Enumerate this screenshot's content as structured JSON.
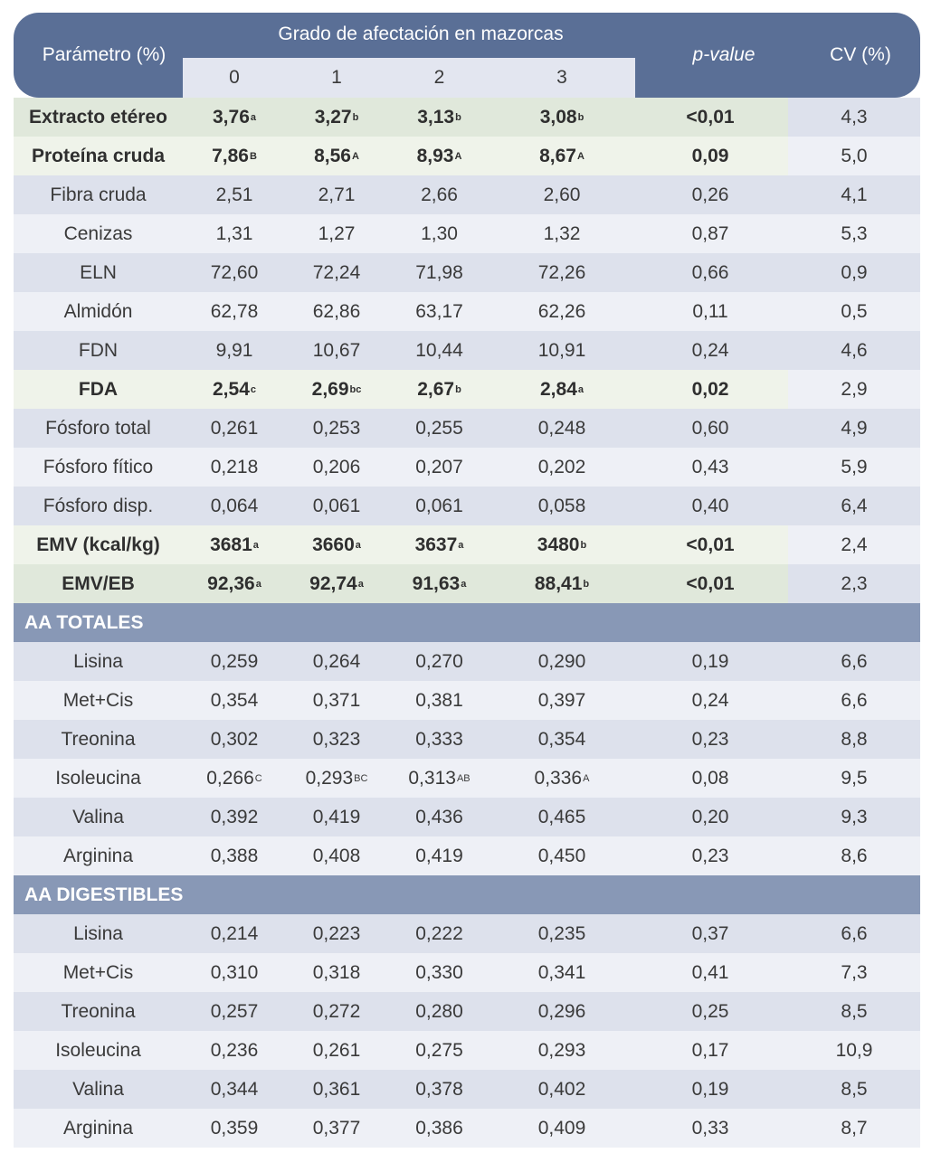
{
  "header": {
    "param_label": "Parámetro (%)",
    "group_label": "Grado de afectación en mazorcas",
    "levels": [
      "0",
      "1",
      "2",
      "3"
    ],
    "pvalue_label": "p-value",
    "cv_label": "CV (%)"
  },
  "rows": [
    {
      "type": "data",
      "style": "green",
      "bold": true,
      "param": "Extracto etéreo",
      "vals": [
        {
          "v": "3,76",
          "s": "a"
        },
        {
          "v": "3,27",
          "s": "b"
        },
        {
          "v": "3,13",
          "s": "b"
        },
        {
          "v": "3,08",
          "s": "b"
        }
      ],
      "p": "<0,01",
      "cv": "4,3"
    },
    {
      "type": "data",
      "style": "green",
      "bold": true,
      "param": "Proteína cruda",
      "vals": [
        {
          "v": "7,86",
          "s": "B"
        },
        {
          "v": "8,56",
          "s": "A"
        },
        {
          "v": "8,93",
          "s": "A"
        },
        {
          "v": "8,67",
          "s": "A"
        }
      ],
      "p": "0,09",
      "cv": "5,0"
    },
    {
      "type": "data",
      "param": "Fibra cruda",
      "vals": [
        {
          "v": "2,51"
        },
        {
          "v": "2,71"
        },
        {
          "v": "2,66"
        },
        {
          "v": "2,60"
        }
      ],
      "p": "0,26",
      "cv": "4,1"
    },
    {
      "type": "data",
      "param": "Cenizas",
      "vals": [
        {
          "v": "1,31"
        },
        {
          "v": "1,27"
        },
        {
          "v": "1,30"
        },
        {
          "v": "1,32"
        }
      ],
      "p": "0,87",
      "cv": "5,3"
    },
    {
      "type": "data",
      "param": "ELN",
      "vals": [
        {
          "v": "72,60"
        },
        {
          "v": "72,24"
        },
        {
          "v": "71,98"
        },
        {
          "v": "72,26"
        }
      ],
      "p": "0,66",
      "cv": "0,9"
    },
    {
      "type": "data",
      "param": "Almidón",
      "vals": [
        {
          "v": "62,78"
        },
        {
          "v": "62,86"
        },
        {
          "v": "63,17"
        },
        {
          "v": "62,26"
        }
      ],
      "p": "0,11",
      "cv": "0,5"
    },
    {
      "type": "data",
      "param": "FDN",
      "vals": [
        {
          "v": "9,91"
        },
        {
          "v": "10,67"
        },
        {
          "v": "10,44"
        },
        {
          "v": "10,91"
        }
      ],
      "p": "0,24",
      "cv": "4,6"
    },
    {
      "type": "data",
      "style": "green",
      "bold": true,
      "param": "FDA",
      "vals": [
        {
          "v": "2,54",
          "s": "c"
        },
        {
          "v": "2,69",
          "s": "bc"
        },
        {
          "v": "2,67",
          "s": "b"
        },
        {
          "v": "2,84",
          "s": "a"
        }
      ],
      "p": "0,02",
      "cv": "2,9"
    },
    {
      "type": "data",
      "param": "Fósforo total",
      "vals": [
        {
          "v": "0,261"
        },
        {
          "v": "0,253"
        },
        {
          "v": "0,255"
        },
        {
          "v": "0,248"
        }
      ],
      "p": "0,60",
      "cv": "4,9"
    },
    {
      "type": "data",
      "param": "Fósforo fítico",
      "vals": [
        {
          "v": "0,218"
        },
        {
          "v": "0,206"
        },
        {
          "v": "0,207"
        },
        {
          "v": "0,202"
        }
      ],
      "p": "0,43",
      "cv": "5,9"
    },
    {
      "type": "data",
      "param": "Fósforo disp.",
      "vals": [
        {
          "v": "0,064"
        },
        {
          "v": "0,061"
        },
        {
          "v": "0,061"
        },
        {
          "v": "0,058"
        }
      ],
      "p": "0,40",
      "cv": "6,4"
    },
    {
      "type": "data",
      "style": "green",
      "bold": true,
      "param": "EMV (kcal/kg)",
      "vals": [
        {
          "v": "3681",
          "s": "a"
        },
        {
          "v": "3660",
          "s": "a"
        },
        {
          "v": "3637",
          "s": "a"
        },
        {
          "v": "3480",
          "s": "b"
        }
      ],
      "p": "<0,01",
      "cv": "2,4"
    },
    {
      "type": "data",
      "style": "green",
      "bold": true,
      "param": "EMV/EB",
      "vals": [
        {
          "v": "92,36",
          "s": "a"
        },
        {
          "v": "92,74",
          "s": "a"
        },
        {
          "v": "91,63",
          "s": "a"
        },
        {
          "v": "88,41",
          "s": "b"
        }
      ],
      "p": "<0,01",
      "cv": "2,3"
    },
    {
      "type": "section",
      "label": "AA TOTALES"
    },
    {
      "type": "data",
      "param": "Lisina",
      "vals": [
        {
          "v": "0,259"
        },
        {
          "v": "0,264"
        },
        {
          "v": "0,270"
        },
        {
          "v": "0,290"
        }
      ],
      "p": "0,19",
      "cv": "6,6"
    },
    {
      "type": "data",
      "param": "Met+Cis",
      "vals": [
        {
          "v": "0,354"
        },
        {
          "v": "0,371"
        },
        {
          "v": "0,381"
        },
        {
          "v": "0,397"
        }
      ],
      "p": "0,24",
      "cv": "6,6"
    },
    {
      "type": "data",
      "param": "Treonina",
      "vals": [
        {
          "v": "0,302"
        },
        {
          "v": "0,323"
        },
        {
          "v": "0,333"
        },
        {
          "v": "0,354"
        }
      ],
      "p": "0,23",
      "cv": "8,8"
    },
    {
      "type": "data",
      "param": "Isoleucina",
      "vals": [
        {
          "v": "0,266",
          "s": "C"
        },
        {
          "v": "0,293",
          "s": "BC"
        },
        {
          "v": "0,313",
          "s": "AB"
        },
        {
          "v": "0,336",
          "s": "A"
        }
      ],
      "p": "0,08",
      "cv": "9,5"
    },
    {
      "type": "data",
      "param": "Valina",
      "vals": [
        {
          "v": "0,392"
        },
        {
          "v": "0,419"
        },
        {
          "v": "0,436"
        },
        {
          "v": "0,465"
        }
      ],
      "p": "0,20",
      "cv": "9,3"
    },
    {
      "type": "data",
      "param": "Arginina",
      "vals": [
        {
          "v": "0,388"
        },
        {
          "v": "0,408"
        },
        {
          "v": "0,419"
        },
        {
          "v": "0,450"
        }
      ],
      "p": "0,23",
      "cv": "8,6"
    },
    {
      "type": "section",
      "label": "AA DIGESTIBLES"
    },
    {
      "type": "data",
      "param": "Lisina",
      "vals": [
        {
          "v": "0,214"
        },
        {
          "v": "0,223"
        },
        {
          "v": "0,222"
        },
        {
          "v": "0,235"
        }
      ],
      "p": "0,37",
      "cv": "6,6"
    },
    {
      "type": "data",
      "param": "Met+Cis",
      "vals": [
        {
          "v": "0,310"
        },
        {
          "v": "0,318"
        },
        {
          "v": "0,330"
        },
        {
          "v": "0,341"
        }
      ],
      "p": "0,41",
      "cv": "7,3"
    },
    {
      "type": "data",
      "param": "Treonina",
      "vals": [
        {
          "v": "0,257"
        },
        {
          "v": "0,272"
        },
        {
          "v": "0,280"
        },
        {
          "v": "0,296"
        }
      ],
      "p": "0,25",
      "cv": "8,5"
    },
    {
      "type": "data",
      "param": "Isoleucina",
      "vals": [
        {
          "v": "0,236"
        },
        {
          "v": "0,261"
        },
        {
          "v": "0,275"
        },
        {
          "v": "0,293"
        }
      ],
      "p": "0,17",
      "cv": "10,9"
    },
    {
      "type": "data",
      "param": "Valina",
      "vals": [
        {
          "v": "0,344"
        },
        {
          "v": "0,361"
        },
        {
          "v": "0,378"
        },
        {
          "v": "0,402"
        }
      ],
      "p": "0,19",
      "cv": "8,5"
    },
    {
      "type": "data",
      "param": "Arginina",
      "vals": [
        {
          "v": "0,359"
        },
        {
          "v": "0,377"
        },
        {
          "v": "0,386"
        },
        {
          "v": "0,409"
        }
      ],
      "p": "0,33",
      "cv": "8,7"
    }
  ]
}
